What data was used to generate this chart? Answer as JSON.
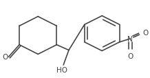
{
  "bg_color": "#ffffff",
  "line_color": "#404040",
  "line_width": 1.15,
  "figsize": [
    2.18,
    1.14
  ],
  "dpi": 100,
  "font_size": 7.5,
  "xlim": [
    0,
    218
  ],
  "ylim": [
    0,
    114
  ]
}
